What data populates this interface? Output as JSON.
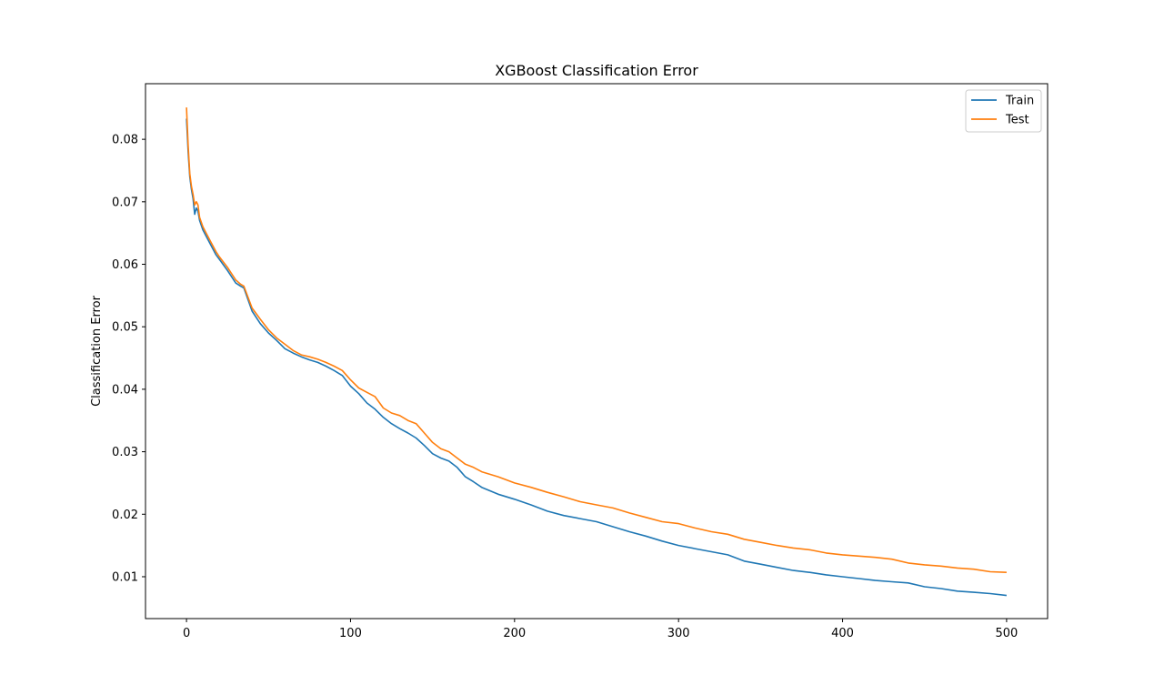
{
  "chart_data": {
    "type": "line",
    "title": "XGBoost Classification Error",
    "xlabel": "",
    "ylabel": "Classification Error",
    "xlim": [
      -25,
      525
    ],
    "ylim": [
      0.0033,
      0.0889
    ],
    "xticks": [
      0,
      100,
      200,
      300,
      400,
      500
    ],
    "yticks": [
      0.01,
      0.02,
      0.03,
      0.04,
      0.05,
      0.06,
      0.07,
      0.08
    ],
    "ytick_labels": [
      "0.01",
      "0.02",
      "0.03",
      "0.04",
      "0.05",
      "0.06",
      "0.07",
      "0.08"
    ],
    "grid": false,
    "legend": "top-right",
    "series": [
      {
        "name": "Train",
        "color": "#1f77b4",
        "x": [
          0,
          1,
          2,
          3,
          4,
          5,
          6,
          7,
          8,
          10,
          12,
          15,
          18,
          20,
          25,
          30,
          33,
          35,
          40,
          45,
          50,
          55,
          60,
          65,
          70,
          75,
          80,
          85,
          90,
          95,
          100,
          105,
          110,
          115,
          120,
          125,
          130,
          135,
          140,
          145,
          150,
          155,
          160,
          165,
          170,
          175,
          180,
          190,
          200,
          210,
          220,
          230,
          240,
          250,
          260,
          270,
          280,
          290,
          300,
          310,
          320,
          330,
          340,
          350,
          360,
          370,
          380,
          390,
          400,
          410,
          420,
          430,
          440,
          450,
          460,
          470,
          480,
          490,
          500
        ],
        "values": [
          0.0833,
          0.078,
          0.074,
          0.072,
          0.0705,
          0.068,
          0.069,
          0.0685,
          0.067,
          0.0655,
          0.0645,
          0.063,
          0.0615,
          0.0608,
          0.059,
          0.057,
          0.0565,
          0.0562,
          0.0525,
          0.0505,
          0.049,
          0.0478,
          0.0465,
          0.0458,
          0.0452,
          0.0447,
          0.0443,
          0.0437,
          0.043,
          0.0422,
          0.0405,
          0.0393,
          0.0378,
          0.0368,
          0.0355,
          0.0345,
          0.0337,
          0.033,
          0.0322,
          0.031,
          0.0297,
          0.029,
          0.0285,
          0.0275,
          0.026,
          0.0252,
          0.0243,
          0.0232,
          0.0224,
          0.0215,
          0.0205,
          0.0198,
          0.0193,
          0.0188,
          0.018,
          0.0172,
          0.0165,
          0.0157,
          0.015,
          0.0145,
          0.014,
          0.0135,
          0.0125,
          0.012,
          0.0115,
          0.011,
          0.0107,
          0.0103,
          0.01,
          0.0097,
          0.0094,
          0.0092,
          0.009,
          0.0084,
          0.0081,
          0.0077,
          0.0075,
          0.0073,
          0.007
        ]
      },
      {
        "name": "Test",
        "color": "#ff7f0e",
        "x": [
          0,
          1,
          2,
          3,
          4,
          5,
          6,
          7,
          8,
          10,
          12,
          15,
          18,
          20,
          25,
          30,
          33,
          35,
          40,
          45,
          50,
          55,
          60,
          65,
          70,
          75,
          80,
          85,
          90,
          95,
          100,
          105,
          110,
          115,
          120,
          125,
          130,
          135,
          140,
          145,
          150,
          155,
          160,
          165,
          170,
          175,
          180,
          190,
          200,
          210,
          220,
          230,
          240,
          250,
          260,
          270,
          280,
          290,
          300,
          310,
          320,
          330,
          340,
          350,
          360,
          370,
          380,
          390,
          400,
          410,
          420,
          430,
          440,
          450,
          460,
          470,
          480,
          490,
          500
        ],
        "values": [
          0.0851,
          0.079,
          0.0745,
          0.0725,
          0.0712,
          0.0695,
          0.07,
          0.0695,
          0.0675,
          0.066,
          0.065,
          0.0635,
          0.062,
          0.0612,
          0.0595,
          0.0575,
          0.0568,
          0.0565,
          0.053,
          0.0512,
          0.0495,
          0.0482,
          0.0472,
          0.0462,
          0.0455,
          0.0452,
          0.0448,
          0.0443,
          0.0437,
          0.043,
          0.0415,
          0.0402,
          0.0395,
          0.0388,
          0.037,
          0.0362,
          0.0358,
          0.035,
          0.0345,
          0.033,
          0.0315,
          0.0305,
          0.03,
          0.029,
          0.028,
          0.0275,
          0.0268,
          0.026,
          0.025,
          0.0243,
          0.0235,
          0.0228,
          0.022,
          0.0215,
          0.021,
          0.0202,
          0.0195,
          0.0188,
          0.0185,
          0.0178,
          0.0172,
          0.0168,
          0.016,
          0.0155,
          0.015,
          0.0146,
          0.0143,
          0.0138,
          0.0135,
          0.0133,
          0.0131,
          0.0128,
          0.0122,
          0.0119,
          0.0117,
          0.0114,
          0.0112,
          0.0108,
          0.0107
        ]
      }
    ]
  }
}
